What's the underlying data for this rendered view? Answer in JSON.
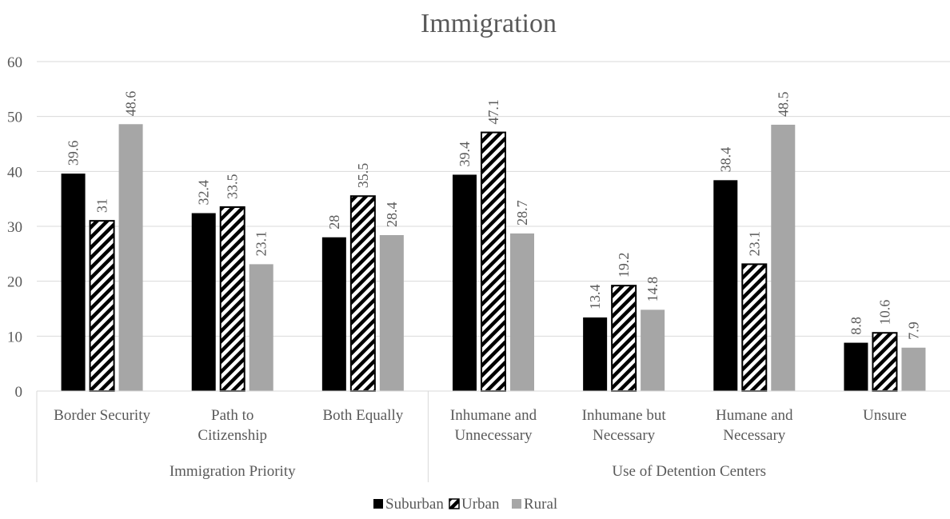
{
  "chart_data": {
    "type": "bar",
    "title": "Immigration",
    "xlabel": "",
    "ylabel": "",
    "ylim": [
      0,
      60
    ],
    "yticks": [
      0,
      10,
      20,
      30,
      40,
      50,
      60
    ],
    "grid": true,
    "legend_position": "bottom",
    "groups": [
      {
        "name": "Immigration Priority",
        "categories": [
          0,
          1,
          2
        ]
      },
      {
        "name": "Use of Detention Centers",
        "categories": [
          3,
          4,
          5,
          6
        ]
      }
    ],
    "categories": [
      [
        "Border Security"
      ],
      [
        "Path to",
        "Citizenship"
      ],
      [
        "Both Equally"
      ],
      [
        "Inhumane and",
        "Unnecessary"
      ],
      [
        "Inhumane but",
        "Necessary"
      ],
      [
        "Humane and",
        "Necessary"
      ],
      [
        "Unsure"
      ]
    ],
    "series": [
      {
        "name": "Suburban",
        "color": "#000000",
        "pattern": "solid",
        "values": [
          39.6,
          32.4,
          28,
          39.4,
          13.4,
          38.4,
          8.8
        ]
      },
      {
        "name": "Urban",
        "color": "#000000",
        "pattern": "diagonal-stripes",
        "values": [
          31,
          33.5,
          35.5,
          47.1,
          19.2,
          23.1,
          10.6
        ]
      },
      {
        "name": "Rural",
        "color": "#a6a6a6",
        "pattern": "solid",
        "values": [
          48.6,
          23.1,
          28.4,
          28.7,
          14.8,
          48.5,
          7.9
        ]
      }
    ]
  }
}
